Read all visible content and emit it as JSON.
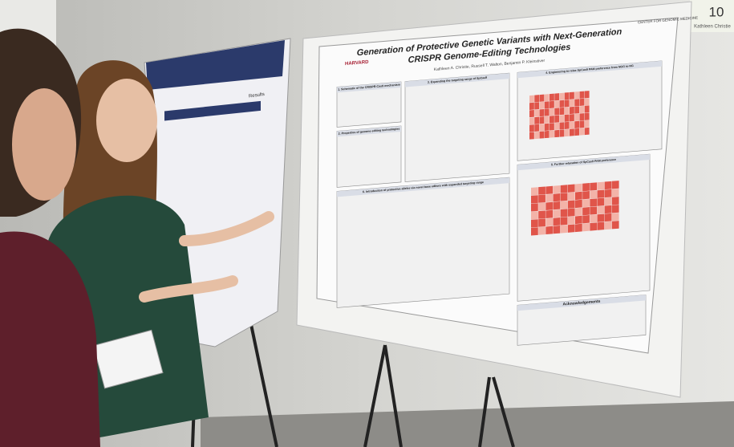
{
  "sign": {
    "number": "10",
    "name": "Kathleen Christie"
  },
  "poster": {
    "title_line1": "Generation of Protective Genetic Variants with Next-Generation",
    "title_line2": "CRISPR Genome-Editing Technologies",
    "authors": "Kathleen A. Christie, Russell T. Walton, Benjamin P. Kleinstiver",
    "logos": [
      "HARVARD",
      "CENTER FOR GENOMIC MEDICINE"
    ],
    "sections": [
      "1. Schematic of the CRISPR-Cas9 mechanism",
      "2. Properties of genome editing technologies",
      "3. Expanding the targeting range of SpCas9",
      "4. Engineering to relax SpCas9 PAM preference from NGG to NG",
      "5. Further relaxation of SpCas9 PAM preference",
      "6. Introduction of protective alleles via novel base editors with expanded targeting range",
      "Acknowledgements"
    ]
  },
  "left_poster": {
    "heading": "Results"
  }
}
